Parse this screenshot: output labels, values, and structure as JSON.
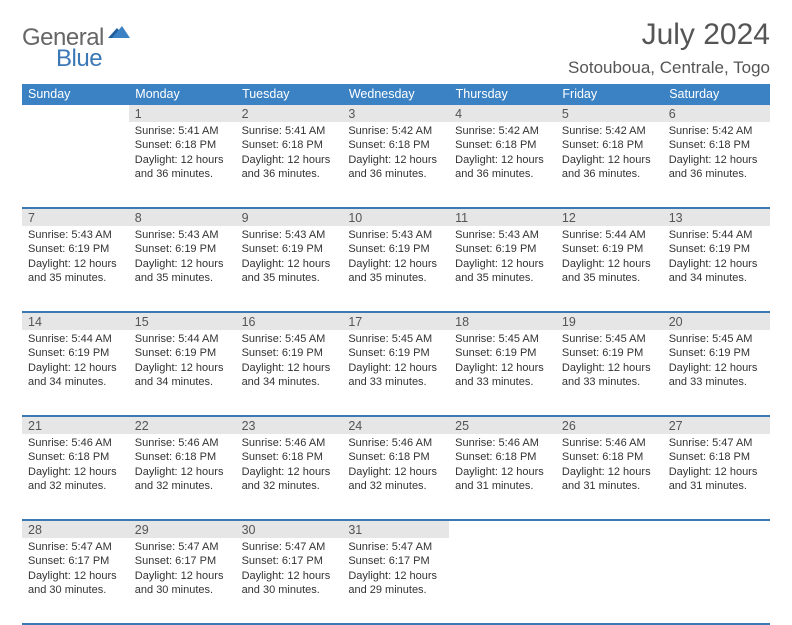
{
  "logo": {
    "word1": "General",
    "word2": "Blue"
  },
  "title": "July 2024",
  "location": "Sotouboua, Centrale, Togo",
  "days_of_week": [
    "Sunday",
    "Monday",
    "Tuesday",
    "Wednesday",
    "Thursday",
    "Friday",
    "Saturday"
  ],
  "colors": {
    "header_bg": "#3b82c4",
    "daynum_bg": "#e6e6e6",
    "rule": "#3b78b5",
    "logo_blue": "#3b78b5",
    "logo_gray": "#666"
  },
  "weeks": [
    {
      "nums": [
        "",
        "1",
        "2",
        "3",
        "4",
        "5",
        "6"
      ],
      "cells": [
        null,
        {
          "sunrise": "5:41 AM",
          "sunset": "6:18 PM",
          "daylight": "12 hours and 36 minutes."
        },
        {
          "sunrise": "5:41 AM",
          "sunset": "6:18 PM",
          "daylight": "12 hours and 36 minutes."
        },
        {
          "sunrise": "5:42 AM",
          "sunset": "6:18 PM",
          "daylight": "12 hours and 36 minutes."
        },
        {
          "sunrise": "5:42 AM",
          "sunset": "6:18 PM",
          "daylight": "12 hours and 36 minutes."
        },
        {
          "sunrise": "5:42 AM",
          "sunset": "6:18 PM",
          "daylight": "12 hours and 36 minutes."
        },
        {
          "sunrise": "5:42 AM",
          "sunset": "6:18 PM",
          "daylight": "12 hours and 36 minutes."
        }
      ]
    },
    {
      "nums": [
        "7",
        "8",
        "9",
        "10",
        "11",
        "12",
        "13"
      ],
      "cells": [
        {
          "sunrise": "5:43 AM",
          "sunset": "6:19 PM",
          "daylight": "12 hours and 35 minutes."
        },
        {
          "sunrise": "5:43 AM",
          "sunset": "6:19 PM",
          "daylight": "12 hours and 35 minutes."
        },
        {
          "sunrise": "5:43 AM",
          "sunset": "6:19 PM",
          "daylight": "12 hours and 35 minutes."
        },
        {
          "sunrise": "5:43 AM",
          "sunset": "6:19 PM",
          "daylight": "12 hours and 35 minutes."
        },
        {
          "sunrise": "5:43 AM",
          "sunset": "6:19 PM",
          "daylight": "12 hours and 35 minutes."
        },
        {
          "sunrise": "5:44 AM",
          "sunset": "6:19 PM",
          "daylight": "12 hours and 35 minutes."
        },
        {
          "sunrise": "5:44 AM",
          "sunset": "6:19 PM",
          "daylight": "12 hours and 34 minutes."
        }
      ]
    },
    {
      "nums": [
        "14",
        "15",
        "16",
        "17",
        "18",
        "19",
        "20"
      ],
      "cells": [
        {
          "sunrise": "5:44 AM",
          "sunset": "6:19 PM",
          "daylight": "12 hours and 34 minutes."
        },
        {
          "sunrise": "5:44 AM",
          "sunset": "6:19 PM",
          "daylight": "12 hours and 34 minutes."
        },
        {
          "sunrise": "5:45 AM",
          "sunset": "6:19 PM",
          "daylight": "12 hours and 34 minutes."
        },
        {
          "sunrise": "5:45 AM",
          "sunset": "6:19 PM",
          "daylight": "12 hours and 33 minutes."
        },
        {
          "sunrise": "5:45 AM",
          "sunset": "6:19 PM",
          "daylight": "12 hours and 33 minutes."
        },
        {
          "sunrise": "5:45 AM",
          "sunset": "6:19 PM",
          "daylight": "12 hours and 33 minutes."
        },
        {
          "sunrise": "5:45 AM",
          "sunset": "6:19 PM",
          "daylight": "12 hours and 33 minutes."
        }
      ]
    },
    {
      "nums": [
        "21",
        "22",
        "23",
        "24",
        "25",
        "26",
        "27"
      ],
      "cells": [
        {
          "sunrise": "5:46 AM",
          "sunset": "6:18 PM",
          "daylight": "12 hours and 32 minutes."
        },
        {
          "sunrise": "5:46 AM",
          "sunset": "6:18 PM",
          "daylight": "12 hours and 32 minutes."
        },
        {
          "sunrise": "5:46 AM",
          "sunset": "6:18 PM",
          "daylight": "12 hours and 32 minutes."
        },
        {
          "sunrise": "5:46 AM",
          "sunset": "6:18 PM",
          "daylight": "12 hours and 32 minutes."
        },
        {
          "sunrise": "5:46 AM",
          "sunset": "6:18 PM",
          "daylight": "12 hours and 31 minutes."
        },
        {
          "sunrise": "5:46 AM",
          "sunset": "6:18 PM",
          "daylight": "12 hours and 31 minutes."
        },
        {
          "sunrise": "5:47 AM",
          "sunset": "6:18 PM",
          "daylight": "12 hours and 31 minutes."
        }
      ]
    },
    {
      "nums": [
        "28",
        "29",
        "30",
        "31",
        "",
        "",
        ""
      ],
      "cells": [
        {
          "sunrise": "5:47 AM",
          "sunset": "6:17 PM",
          "daylight": "12 hours and 30 minutes."
        },
        {
          "sunrise": "5:47 AM",
          "sunset": "6:17 PM",
          "daylight": "12 hours and 30 minutes."
        },
        {
          "sunrise": "5:47 AM",
          "sunset": "6:17 PM",
          "daylight": "12 hours and 30 minutes."
        },
        {
          "sunrise": "5:47 AM",
          "sunset": "6:17 PM",
          "daylight": "12 hours and 29 minutes."
        },
        null,
        null,
        null
      ]
    }
  ],
  "labels": {
    "sunrise": "Sunrise:",
    "sunset": "Sunset:",
    "daylight": "Daylight:"
  }
}
